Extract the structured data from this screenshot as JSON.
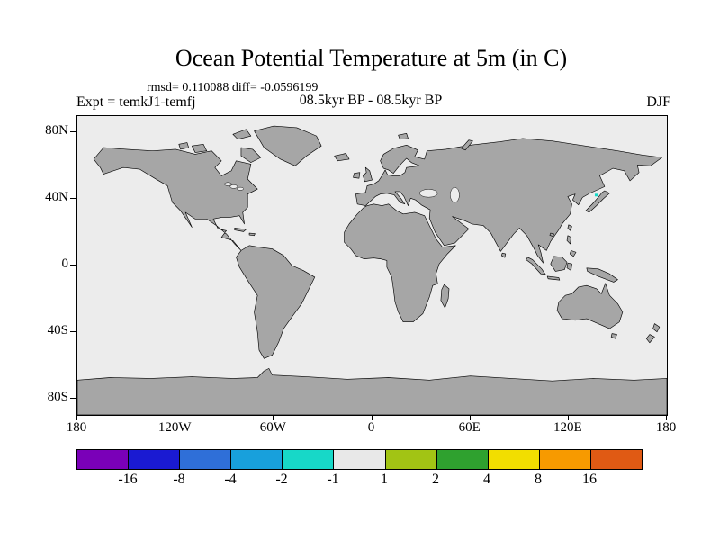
{
  "header": {
    "title": "Ocean Potential Temperature at 5m (in C)",
    "stats_line": "rmsd= 0.110088 diff= -0.0596199",
    "experiment_label": "Expt = temkJ1-temfj",
    "period_label": "08.5kyr BP - 08.5kyr BP",
    "season_label": "DJF"
  },
  "chart_data": {
    "type": "heatmap",
    "title": "Ocean Potential Temperature at 5m (in C)",
    "subtitle": "rmsd= 0.110088 diff= -0.0596199",
    "projection": "equirectangular world map",
    "description": "Difference field is in the -1 to 1 C bin (light gray) over nearly the entire ocean; a single small cyan patch (-2 to -1 C bin) appears in the NW Pacific near Japan at about 42N, 137E.",
    "x_axis": {
      "ticks": [
        {
          "label": "180",
          "lon": -180
        },
        {
          "label": "120W",
          "lon": -120
        },
        {
          "label": "60W",
          "lon": -60
        },
        {
          "label": "0",
          "lon": 0
        },
        {
          "label": "60E",
          "lon": 60
        },
        {
          "label": "120E",
          "lon": 120
        },
        {
          "label": "180",
          "lon": 180
        }
      ]
    },
    "y_axis": {
      "ticks": [
        {
          "label": "80N",
          "lat": 80
        },
        {
          "label": "40N",
          "lat": 40
        },
        {
          "label": "0",
          "lat": 0
        },
        {
          "label": "40S",
          "lat": -40
        },
        {
          "label": "80S",
          "lat": -80
        }
      ]
    },
    "colorbar": {
      "labels": [
        "-16",
        "-8",
        "-4",
        "-2",
        "-1",
        "1",
        "2",
        "4",
        "8",
        "16"
      ],
      "colors": [
        "#7a00b8",
        "#1a1ad2",
        "#2f6fd8",
        "#18a0dc",
        "#17d8c8",
        "#e8e8e8",
        "#a2c414",
        "#2fa12f",
        "#f2de00",
        "#f79a00",
        "#e05a14"
      ],
      "units": "C"
    },
    "map": {
      "land_color": "#a6a6a6",
      "ocean_color": "#ececec",
      "coastline_color": "#000000"
    },
    "anomaly": {
      "color": "#17d8c8",
      "lon": 137,
      "lat": 42,
      "bin": "-2 to -1"
    }
  }
}
